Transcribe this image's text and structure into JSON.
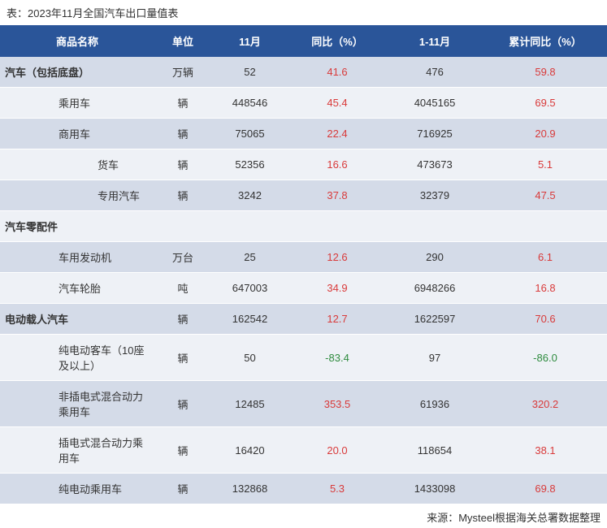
{
  "title": "表：2023年11月全国汽车出口量值表",
  "source": "来源：Mysteel根据海关总署数据整理",
  "colors": {
    "header_bg": "#2a5599",
    "header_text": "#ffffff",
    "row_even": "#d4dbe8",
    "row_odd": "#eef1f6",
    "text": "#333333",
    "positive": "#d93a3a",
    "negative": "#2e8b3e"
  },
  "columns": [
    {
      "key": "name",
      "label": "商品名称"
    },
    {
      "key": "unit",
      "label": "单位"
    },
    {
      "key": "nov",
      "label": "11月"
    },
    {
      "key": "yoy",
      "label": "同比（%）"
    },
    {
      "key": "cum",
      "label": "1-11月"
    },
    {
      "key": "cyoy",
      "label": "累计同比（%）"
    }
  ],
  "rows": [
    {
      "name": "汽车（包括底盘）",
      "unit": "万辆",
      "nov": "52",
      "yoy": "41.6",
      "yoy_cls": "red",
      "cum": "476",
      "cyoy": "59.8",
      "cyoy_cls": "red",
      "bold": true,
      "indent": 0
    },
    {
      "name": "乘用车",
      "unit": "辆",
      "nov": "448546",
      "yoy": "45.4",
      "yoy_cls": "red",
      "cum": "4045165",
      "cyoy": "69.5",
      "cyoy_cls": "red",
      "bold": false,
      "indent": 1
    },
    {
      "name": "商用车",
      "unit": "辆",
      "nov": "75065",
      "yoy": "22.4",
      "yoy_cls": "red",
      "cum": "716925",
      "cyoy": "20.9",
      "cyoy_cls": "red",
      "bold": false,
      "indent": 1
    },
    {
      "name": "货车",
      "unit": "辆",
      "nov": "52356",
      "yoy": "16.6",
      "yoy_cls": "red",
      "cum": "473673",
      "cyoy": "5.1",
      "cyoy_cls": "red",
      "bold": false,
      "indent": 2
    },
    {
      "name": "专用汽车",
      "unit": "辆",
      "nov": "3242",
      "yoy": "37.8",
      "yoy_cls": "red",
      "cum": "32379",
      "cyoy": "47.5",
      "cyoy_cls": "red",
      "bold": false,
      "indent": 2
    },
    {
      "name": "汽车零配件",
      "unit": "",
      "nov": "",
      "yoy": "",
      "yoy_cls": "",
      "cum": "",
      "cyoy": "",
      "cyoy_cls": "",
      "bold": true,
      "indent": 0
    },
    {
      "name": "车用发动机",
      "unit": "万台",
      "nov": "25",
      "yoy": "12.6",
      "yoy_cls": "red",
      "cum": "290",
      "cyoy": "6.1",
      "cyoy_cls": "red",
      "bold": false,
      "indent": 1
    },
    {
      "name": "汽车轮胎",
      "unit": "吨",
      "nov": "647003",
      "yoy": "34.9",
      "yoy_cls": "red",
      "cum": "6948266",
      "cyoy": "16.8",
      "cyoy_cls": "red",
      "bold": false,
      "indent": 1
    },
    {
      "name": "电动载人汽车",
      "unit": "辆",
      "nov": "162542",
      "yoy": "12.7",
      "yoy_cls": "red",
      "cum": "1622597",
      "cyoy": "70.6",
      "cyoy_cls": "red",
      "bold": true,
      "indent": 0
    },
    {
      "name": "纯电动客车（10座及以上）",
      "unit": "辆",
      "nov": "50",
      "yoy": "-83.4",
      "yoy_cls": "green",
      "cum": "97",
      "cyoy": "-86.0",
      "cyoy_cls": "green",
      "bold": false,
      "indent": 1
    },
    {
      "name": "非插电式混合动力乘用车",
      "unit": "辆",
      "nov": "12485",
      "yoy": "353.5",
      "yoy_cls": "red",
      "cum": "61936",
      "cyoy": "320.2",
      "cyoy_cls": "red",
      "bold": false,
      "indent": 1
    },
    {
      "name": "插电式混合动力乘用车",
      "unit": "辆",
      "nov": "16420",
      "yoy": "20.0",
      "yoy_cls": "red",
      "cum": "118654",
      "cyoy": "38.1",
      "cyoy_cls": "red",
      "bold": false,
      "indent": 1
    },
    {
      "name": "纯电动乘用车",
      "unit": "辆",
      "nov": "132868",
      "yoy": "5.3",
      "yoy_cls": "red",
      "cum": "1433098",
      "cyoy": "69.8",
      "cyoy_cls": "red",
      "bold": false,
      "indent": 1
    }
  ]
}
